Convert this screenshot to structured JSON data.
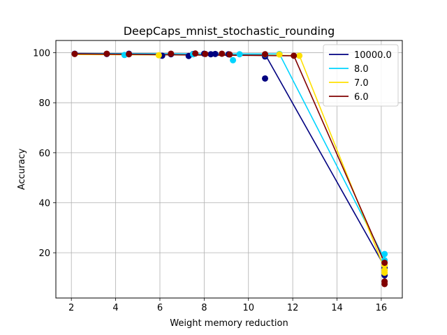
{
  "chart_data": {
    "type": "scatter",
    "title": "DeepCaps_mnist_stochastic_rounding",
    "xlabel": "Weight memory reduction",
    "ylabel": "Accuracy",
    "xlim": [
      1.3,
      16.95
    ],
    "ylim": [
      1.9,
      104.9
    ],
    "xticks": [
      2,
      4,
      6,
      8,
      10,
      12,
      14,
      16
    ],
    "yticks": [
      20,
      40,
      60,
      80,
      100
    ],
    "grid": true,
    "legend_position": "top-right",
    "series": [
      {
        "name": "10000.0",
        "color": "#000080",
        "line": [
          [
            2.15,
            99.7
          ],
          [
            10.75,
            99.4
          ],
          [
            16.15,
            14.5
          ]
        ],
        "points": [
          [
            2.15,
            99.6
          ],
          [
            3.6,
            99.5
          ],
          [
            4.6,
            99.6
          ],
          [
            6.1,
            98.8
          ],
          [
            6.5,
            99.4
          ],
          [
            7.3,
            98.7
          ],
          [
            7.5,
            99.5
          ],
          [
            8.0,
            99.6
          ],
          [
            8.3,
            99.4
          ],
          [
            8.5,
            99.5
          ],
          [
            9.1,
            99.4
          ],
          [
            10.75,
            98.5
          ],
          [
            10.75,
            89.7
          ],
          [
            16.15,
            11.0
          ],
          [
            16.15,
            14.0
          ]
        ]
      },
      {
        "name": "8.0",
        "color": "#00d4ff",
        "line": [
          [
            2.15,
            99.6
          ],
          [
            11.4,
            99.5
          ],
          [
            16.15,
            17.5
          ]
        ],
        "points": [
          [
            4.4,
            99.1
          ],
          [
            7.5,
            99.4
          ],
          [
            9.3,
            97.0
          ],
          [
            9.6,
            99.4
          ],
          [
            10.75,
            99.3
          ],
          [
            11.4,
            99.5
          ],
          [
            16.15,
            19.5
          ],
          [
            16.15,
            17.0
          ]
        ]
      },
      {
        "name": "7.0",
        "color": "#ffe000",
        "line": [
          [
            2.15,
            99.3
          ],
          [
            12.3,
            98.9
          ],
          [
            16.15,
            13.5
          ]
        ],
        "points": [
          [
            5.95,
            99.0
          ],
          [
            11.4,
            99.3
          ],
          [
            12.3,
            98.8
          ],
          [
            16.15,
            15.0
          ],
          [
            16.15,
            13.0
          ],
          [
            16.15,
            12.0
          ]
        ]
      },
      {
        "name": "6.0",
        "color": "#800000",
        "line": [
          [
            2.15,
            99.5
          ],
          [
            12.05,
            98.8
          ],
          [
            16.15,
            16.0
          ]
        ],
        "points": [
          [
            2.15,
            99.5
          ],
          [
            3.6,
            99.6
          ],
          [
            4.6,
            99.4
          ],
          [
            6.5,
            99.6
          ],
          [
            7.6,
            99.7
          ],
          [
            8.05,
            99.5
          ],
          [
            8.8,
            99.6
          ],
          [
            9.15,
            99.3
          ],
          [
            10.75,
            99.4
          ],
          [
            12.05,
            98.8
          ],
          [
            16.15,
            16.0
          ],
          [
            16.15,
            8.5
          ],
          [
            16.15,
            7.5
          ]
        ]
      }
    ]
  }
}
